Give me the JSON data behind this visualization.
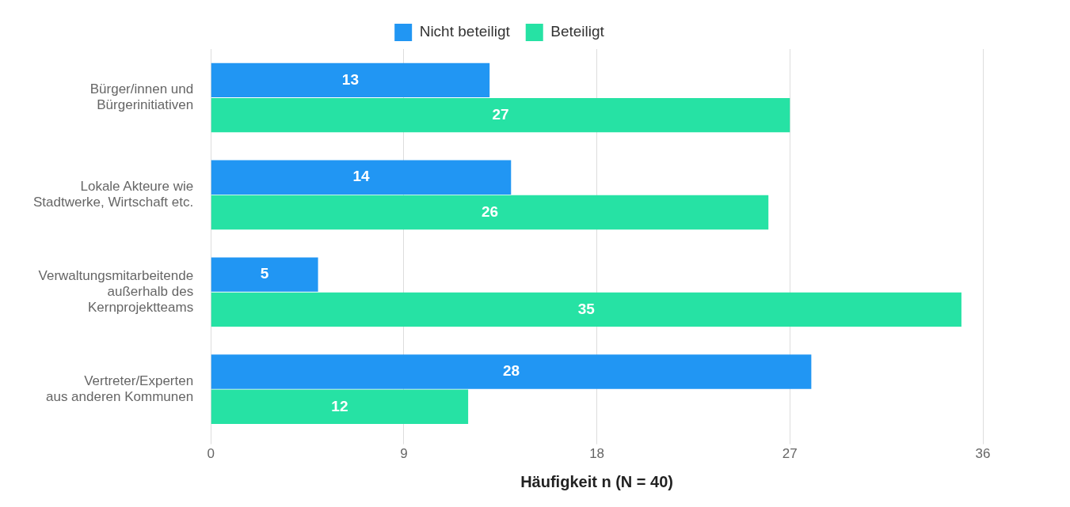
{
  "chart_data": {
    "type": "bar",
    "orientation": "horizontal",
    "xlabel": "Häufigkeit n (N = 40)",
    "categories": [
      "Bürger/innen und\nBürgerinitiativen",
      "Lokale Akteure wie\nStadtwerke, Wirtschaft etc.",
      "Verwaltungsmitarbeitende\naußerhalb des\nKernprojektteams",
      "Vertreter/Experten\naus anderen Kommunen"
    ],
    "series": [
      {
        "name": "Nicht beteiligt",
        "color": "#2196f3",
        "values": [
          13,
          14,
          5,
          28
        ]
      },
      {
        "name": "Beteiligt",
        "color": "#26e2a4",
        "values": [
          27,
          26,
          35,
          12
        ]
      }
    ],
    "xlim": [
      0,
      36
    ],
    "xticks": [
      0,
      9,
      18,
      27,
      36
    ],
    "grid": "x",
    "legend": "top",
    "data_labels": true
  }
}
